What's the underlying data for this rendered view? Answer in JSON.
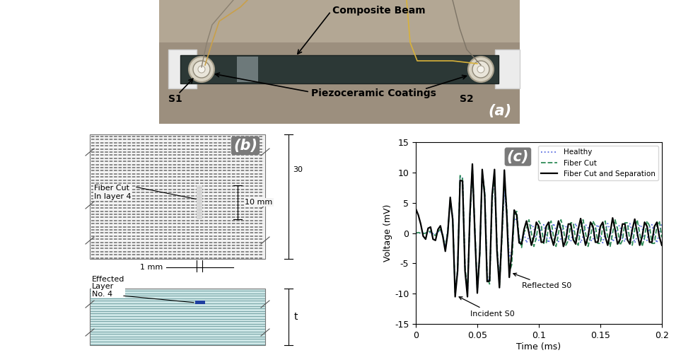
{
  "panels": {
    "a": {
      "label": "(a)",
      "beam": "Composite Beam",
      "coatings": "Piezoceramic Coatings",
      "sensor_left": "S1",
      "sensor_right": "S2"
    },
    "b": {
      "label": "(b)",
      "fiber_cut": "Fiber Cut\nIn layer 4",
      "width_dim": "10 mm",
      "height_dim": "30",
      "cut_dim": "1 mm",
      "affected_layer": "Effected\nLayer\nNo. 4",
      "thickness": "t"
    },
    "c": {
      "label": "(c)"
    }
  },
  "chart_data": {
    "type": "line",
    "x_label": "Time (ms)",
    "y_label": "Voltage (mV)",
    "x": [
      0,
      0.002,
      0.004,
      0.006,
      0.008,
      0.01,
      0.012,
      0.014,
      0.016,
      0.018,
      0.02,
      0.022,
      0.024,
      0.026,
      0.028,
      0.03,
      0.032,
      0.034,
      0.036,
      0.038,
      0.04,
      0.042,
      0.044,
      0.046,
      0.048,
      0.05,
      0.052,
      0.054,
      0.056,
      0.058,
      0.06,
      0.062,
      0.064,
      0.066,
      0.068,
      0.07,
      0.072,
      0.074,
      0.076,
      0.078,
      0.08,
      0.082,
      0.084,
      0.086,
      0.088,
      0.09,
      0.092,
      0.094,
      0.096,
      0.098,
      0.1,
      0.102,
      0.104,
      0.106,
      0.108,
      0.11,
      0.112,
      0.114,
      0.116,
      0.118,
      0.12,
      0.122,
      0.124,
      0.126,
      0.128,
      0.13,
      0.132,
      0.134,
      0.136,
      0.138,
      0.14,
      0.142,
      0.144,
      0.146,
      0.148,
      0.15,
      0.152,
      0.154,
      0.156,
      0.158,
      0.16,
      0.162,
      0.164,
      0.166,
      0.168,
      0.17,
      0.172,
      0.174,
      0.176,
      0.178,
      0.18,
      0.182,
      0.184,
      0.186,
      0.188,
      0.19,
      0.192,
      0.194,
      0.196,
      0.198,
      0.2
    ],
    "series": [
      {
        "name": "Healthy",
        "color": "#5b6ee1",
        "line_style": "dotted",
        "values": [
          0.0,
          0.0,
          0.0,
          0.0,
          0.0,
          0.1,
          0.1,
          -0.1,
          -0.2,
          0.2,
          0.4,
          -0.3,
          -2.2,
          0.5,
          5.2,
          2.8,
          -9.5,
          -6.3,
          9.3,
          9.2,
          -5.8,
          -9.8,
          2.8,
          10.5,
          0.5,
          -9.5,
          -3.5,
          9.5,
          6.8,
          -7.0,
          -8.0,
          5.5,
          9.0,
          -2.5,
          -7.5,
          -0.5,
          7.0,
          3.0,
          -4.0,
          -3.0,
          2.0,
          2.5,
          -0.8,
          -1.5,
          0.0,
          -1.6,
          -0.5,
          1.4,
          0.9,
          -1.2,
          -1.2,
          0.9,
          1.4,
          -0.5,
          -1.6,
          0.0,
          1.6,
          0.5,
          -1.4,
          -0.9,
          1.2,
          1.2,
          -0.9,
          -1.4,
          0.5,
          1.6,
          0.0,
          -1.6,
          -0.5,
          1.4,
          0.9,
          -1.2,
          -1.2,
          0.9,
          1.4,
          -0.5,
          -1.6,
          0.0,
          1.6,
          0.5,
          -1.4,
          -0.9,
          1.2,
          1.2,
          -0.9,
          -1.4,
          0.5,
          1.6,
          0.0,
          -1.6,
          -0.5,
          1.4,
          0.9,
          -1.2,
          -1.2,
          0.9,
          1.4,
          -0.5,
          -1.6,
          0.0,
          1.6
        ]
      },
      {
        "name": "Fiber Cut",
        "color": "#2e8b57",
        "line_style": "dashed",
        "values": [
          0.0,
          0.1,
          0.0,
          -0.1,
          0.0,
          0.2,
          0.3,
          -0.2,
          -0.4,
          0.3,
          0.6,
          -0.4,
          -2.5,
          0.3,
          5.5,
          2.5,
          -9.8,
          -6.0,
          9.5,
          9.0,
          -5.5,
          -9.6,
          2.5,
          10.8,
          0.8,
          -9.3,
          -3.8,
          9.8,
          7.0,
          -7.2,
          -8.4,
          5.2,
          9.6,
          -2.0,
          -8.6,
          -1.0,
          8.8,
          4.0,
          -6.5,
          -5.2,
          2.8,
          3.6,
          -0.8,
          -2.4,
          0.2,
          0.7,
          2.2,
          0.0,
          -2.2,
          -0.7,
          2.0,
          1.2,
          -1.7,
          -1.7,
          1.2,
          2.0,
          -0.7,
          -2.2,
          0.0,
          2.2,
          0.7,
          -2.0,
          -1.2,
          1.7,
          1.7,
          -1.2,
          -2.0,
          0.7,
          2.2,
          0.0,
          -2.2,
          -0.7,
          2.0,
          1.2,
          -1.7,
          -1.7,
          1.2,
          2.0,
          -0.7,
          -2.2,
          0.0,
          2.2,
          0.7,
          -2.0,
          -1.2,
          1.7,
          1.7,
          -1.2,
          -2.0,
          0.7,
          2.2,
          0.0,
          -2.2,
          -0.7,
          2.0,
          1.2,
          -1.7,
          -1.7,
          1.2,
          2.0,
          -0.7
        ]
      },
      {
        "name": "Fiber Cut and Separation",
        "color": "#000000",
        "line_style": "solid",
        "values": [
          4.0,
          3.0,
          1.5,
          -0.5,
          -1.0,
          0.8,
          1.0,
          -1.0,
          -1.2,
          0.6,
          1.2,
          -0.6,
          -3.0,
          0.0,
          5.9,
          2.2,
          -10.5,
          -6.2,
          8.7,
          8.6,
          -6.2,
          -10.5,
          3.2,
          11.4,
          0.0,
          -9.9,
          -3.2,
          10.5,
          6.2,
          -8.0,
          -7.9,
          6.2,
          10.5,
          -3.0,
          -9.0,
          0.0,
          10.4,
          2.8,
          -7.3,
          -3.2,
          3.8,
          3.0,
          -1.6,
          -1.8,
          0.6,
          2.0,
          0.0,
          -2.0,
          -0.6,
          1.8,
          1.1,
          -1.5,
          -1.5,
          1.1,
          1.8,
          -0.6,
          -2.0,
          0.0,
          2.0,
          0.6,
          -2.2,
          -1.1,
          1.5,
          1.5,
          -1.1,
          -1.8,
          0.6,
          2.4,
          0.0,
          -2.0,
          -0.6,
          1.8,
          1.1,
          -1.5,
          -1.5,
          1.1,
          1.8,
          -0.6,
          -2.0,
          0.0,
          2.5,
          0.6,
          -1.8,
          -1.1,
          1.5,
          1.5,
          -1.1,
          -1.8,
          0.6,
          2.3,
          0.0,
          -2.0,
          -0.6,
          1.8,
          1.1,
          -1.5,
          -1.5,
          1.1,
          1.8,
          -0.6,
          -2.0
        ]
      }
    ],
    "xlim": [
      0,
      0.2
    ],
    "xticks": [
      0,
      0.05,
      0.1,
      0.15,
      0.2
    ],
    "ylim": [
      -15,
      15
    ],
    "yticks": [
      -15,
      -10,
      -5,
      0,
      5,
      10,
      15
    ],
    "legend": "upper right",
    "annotations": [
      "Incident S0",
      "Reflected S0"
    ]
  }
}
